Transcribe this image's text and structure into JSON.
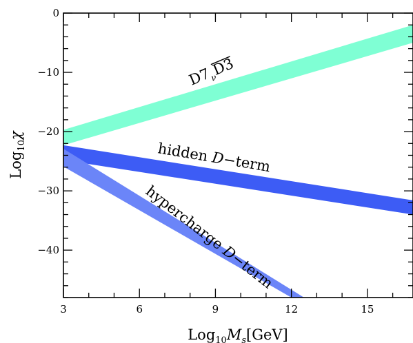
{
  "chart_data": {
    "type": "area",
    "xlim": [
      3,
      16.8
    ],
    "ylim": [
      -48,
      0
    ],
    "xticks": [
      3,
      6,
      9,
      12,
      15
    ],
    "yticks": [
      0,
      -10,
      -20,
      -30,
      -40
    ],
    "xtick_labels": [
      "3",
      "6",
      "9",
      "12",
      "15"
    ],
    "ytick_labels": [
      "0",
      "−10",
      "−20",
      "−30",
      "−40"
    ],
    "xlabel": "Log10Ms[GeV]",
    "ylabel": "Log10χ",
    "grid": false,
    "series": [
      {
        "name": "D7ᵥD3̅",
        "color": "#7fffd4",
        "lower": {
          "x": [
            3,
            16.8
          ],
          "y": [
            -22.3,
            -5.0
          ]
        },
        "upper": {
          "x": [
            3,
            16.8
          ],
          "y": [
            -19.7,
            -2.0
          ]
        }
      },
      {
        "name": "hidden D−term",
        "color": "#3d5cf5",
        "lower": {
          "x": [
            3,
            16.8
          ],
          "y": [
            -24.8,
            -34.0
          ]
        },
        "upper": {
          "x": [
            3,
            16.8
          ],
          "y": [
            -22.3,
            -31.6
          ]
        }
      },
      {
        "name": "hypercharge D−term",
        "color": "#6b85f8",
        "lower": {
          "x": [
            3,
            12.0
          ],
          "y": [
            -25.9,
            -48
          ]
        },
        "upper": {
          "x": [
            3,
            12.5
          ],
          "y": [
            -22.9,
            -48
          ]
        }
      }
    ]
  },
  "labels": {
    "d7_main": "D7",
    "d7_sub": "ν",
    "d7_bar": "D3",
    "hidden_pre": "hidden ",
    "hidden_italic": "D",
    "hidden_post": "−term",
    "hyper_pre": "hypercharge ",
    "hyper_italic": "D",
    "hyper_post": "−term",
    "xlabel_pre": "Log",
    "xlabel_sub": "10",
    "xlabel_var": "M",
    "xlabel_varsub": "s",
    "xlabel_post": "[GeV]",
    "ylabel_pre": "Log",
    "ylabel_sub": "10",
    "ylabel_var": "χ"
  }
}
